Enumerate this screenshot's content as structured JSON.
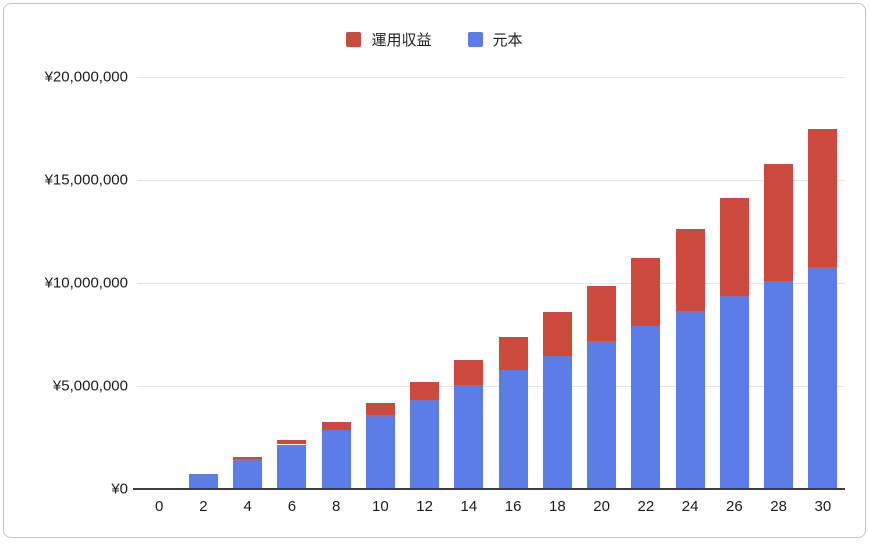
{
  "legend": {
    "items": [
      {
        "key": "returns",
        "label": "運用収益",
        "color": "#cb4a3b"
      },
      {
        "key": "principal",
        "label": "元本",
        "color": "#5b7de8"
      }
    ]
  },
  "chart_data": {
    "type": "bar",
    "stacked": true,
    "title": "",
    "xlabel": "",
    "ylabel": "",
    "grid": "horizontal",
    "legend_position": "top-center",
    "currency": "JPY",
    "categories": [
      "0",
      "2",
      "4",
      "6",
      "8",
      "10",
      "12",
      "14",
      "16",
      "18",
      "20",
      "22",
      "24",
      "26",
      "28",
      "30"
    ],
    "series": [
      {
        "name": "元本",
        "color": "#5b7de8",
        "values": [
          0,
          720000,
          1440000,
          2160000,
          2880000,
          3600000,
          4320000,
          5040000,
          5760000,
          6480000,
          7200000,
          7920000,
          8640000,
          9360000,
          10080000,
          10800000
        ]
      },
      {
        "name": "運用収益",
        "color": "#cb4a3b",
        "values": [
          0,
          20000,
          90000,
          200000,
          370000,
          590000,
          870000,
          1210000,
          1620000,
          2100000,
          2650000,
          3280000,
          3990000,
          4790000,
          5690000,
          6680000
        ]
      }
    ],
    "totals": [
      0,
      740000,
      1530000,
      2360000,
      3250000,
      4190000,
      5190000,
      6250000,
      7380000,
      8580000,
      9850000,
      11200000,
      12630000,
      14150000,
      15770000,
      17480000
    ],
    "ylim": [
      0,
      20000000
    ],
    "yticks": [
      {
        "value": 0,
        "label": "¥0"
      },
      {
        "value": 5000000,
        "label": "¥5,000,000"
      },
      {
        "value": 10000000,
        "label": "¥10,000,000"
      },
      {
        "value": 15000000,
        "label": "¥15,000,000"
      },
      {
        "value": 20000000,
        "label": "¥20,000,000"
      }
    ]
  }
}
